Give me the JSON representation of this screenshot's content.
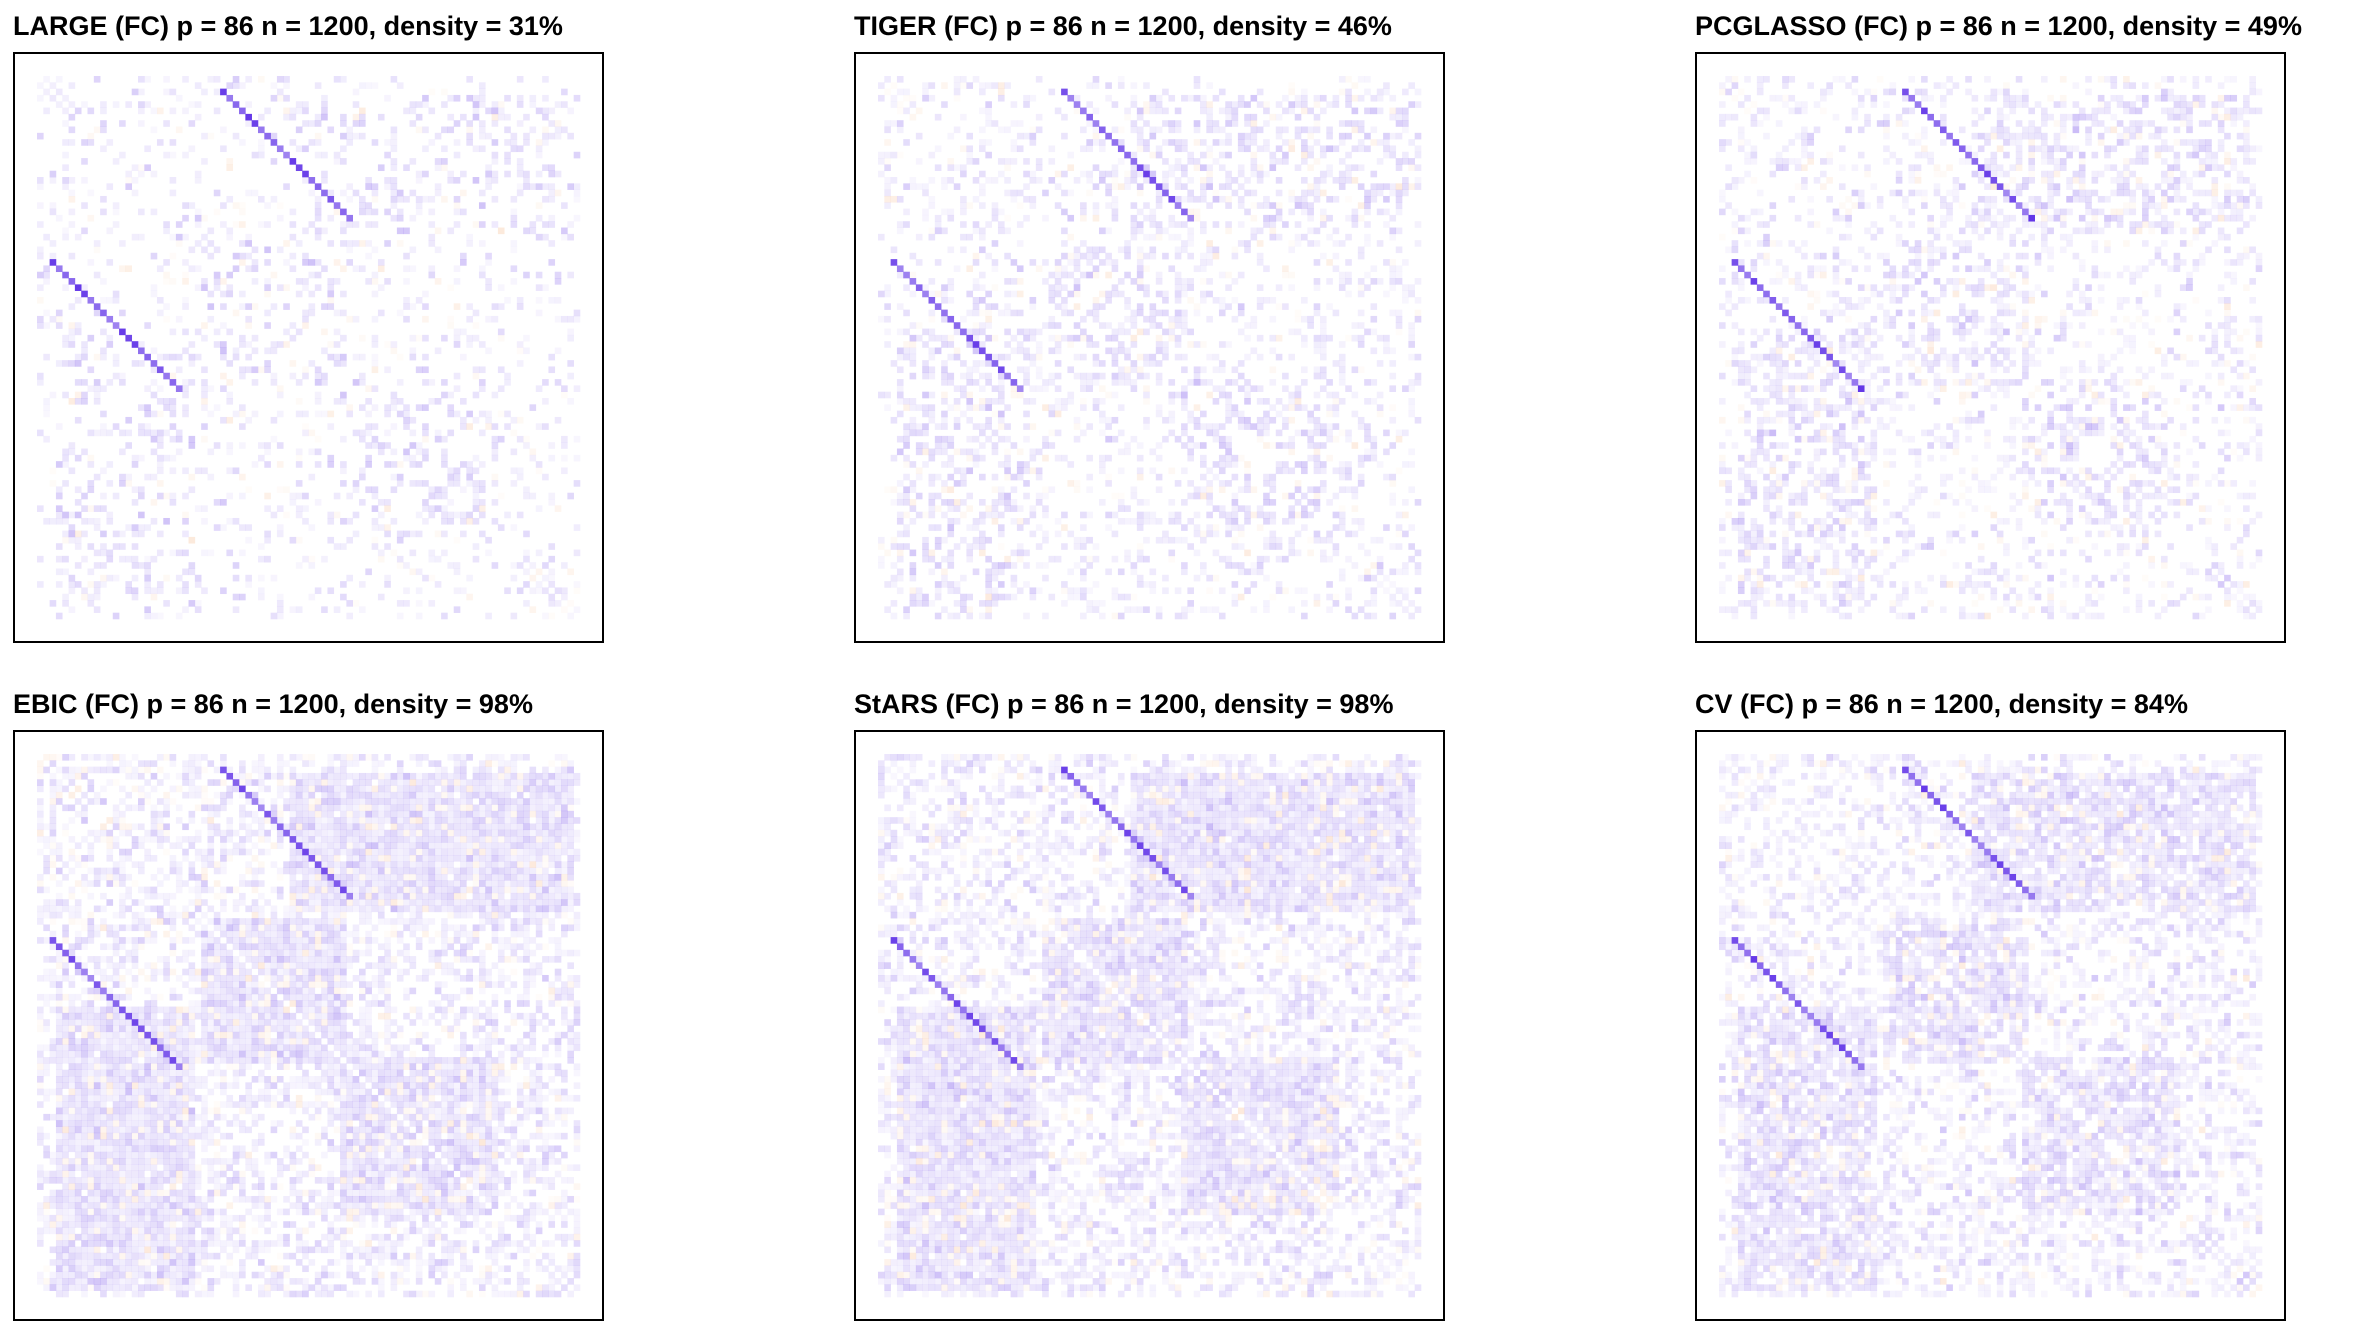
{
  "chart_data": [
    {
      "type": "heatmap",
      "method": "LARGE",
      "title": "LARGE (FC)  p = 86  n = 1200, density = 31%",
      "p": 86,
      "n": 1200,
      "density_pct": 31,
      "positive_color": "#5a2be6",
      "negative_color": "#f08030"
    },
    {
      "type": "heatmap",
      "method": "TIGER",
      "title": "TIGER (FC)  p = 86  n = 1200, density = 46%",
      "p": 86,
      "n": 1200,
      "density_pct": 46,
      "positive_color": "#5a2be6",
      "negative_color": "#f08030"
    },
    {
      "type": "heatmap",
      "method": "PCGLASSO",
      "title": "PCGLASSO (FC)  p = 86  n = 1200, density = 49%",
      "p": 86,
      "n": 1200,
      "density_pct": 49,
      "positive_color": "#5a2be6",
      "negative_color": "#f08030"
    },
    {
      "type": "heatmap",
      "method": "EBIC",
      "title": "EBIC (FC)  p = 86  n = 1200, density = 98%",
      "p": 86,
      "n": 1200,
      "density_pct": 98,
      "positive_color": "#5a2be6",
      "negative_color": "#f08030"
    },
    {
      "type": "heatmap",
      "method": "StARS",
      "title": "StARS (FC)  p = 86  n = 1200, density = 98%",
      "p": 86,
      "n": 1200,
      "density_pct": 98,
      "positive_color": "#5a2be6",
      "negative_color": "#f08030"
    },
    {
      "type": "heatmap",
      "method": "CV",
      "title": "CV (FC)  p = 86  n = 1200, density = 84%",
      "p": 86,
      "n": 1200,
      "density_pct": 84,
      "positive_color": "#5a2be6",
      "negative_color": "#f08030"
    }
  ]
}
